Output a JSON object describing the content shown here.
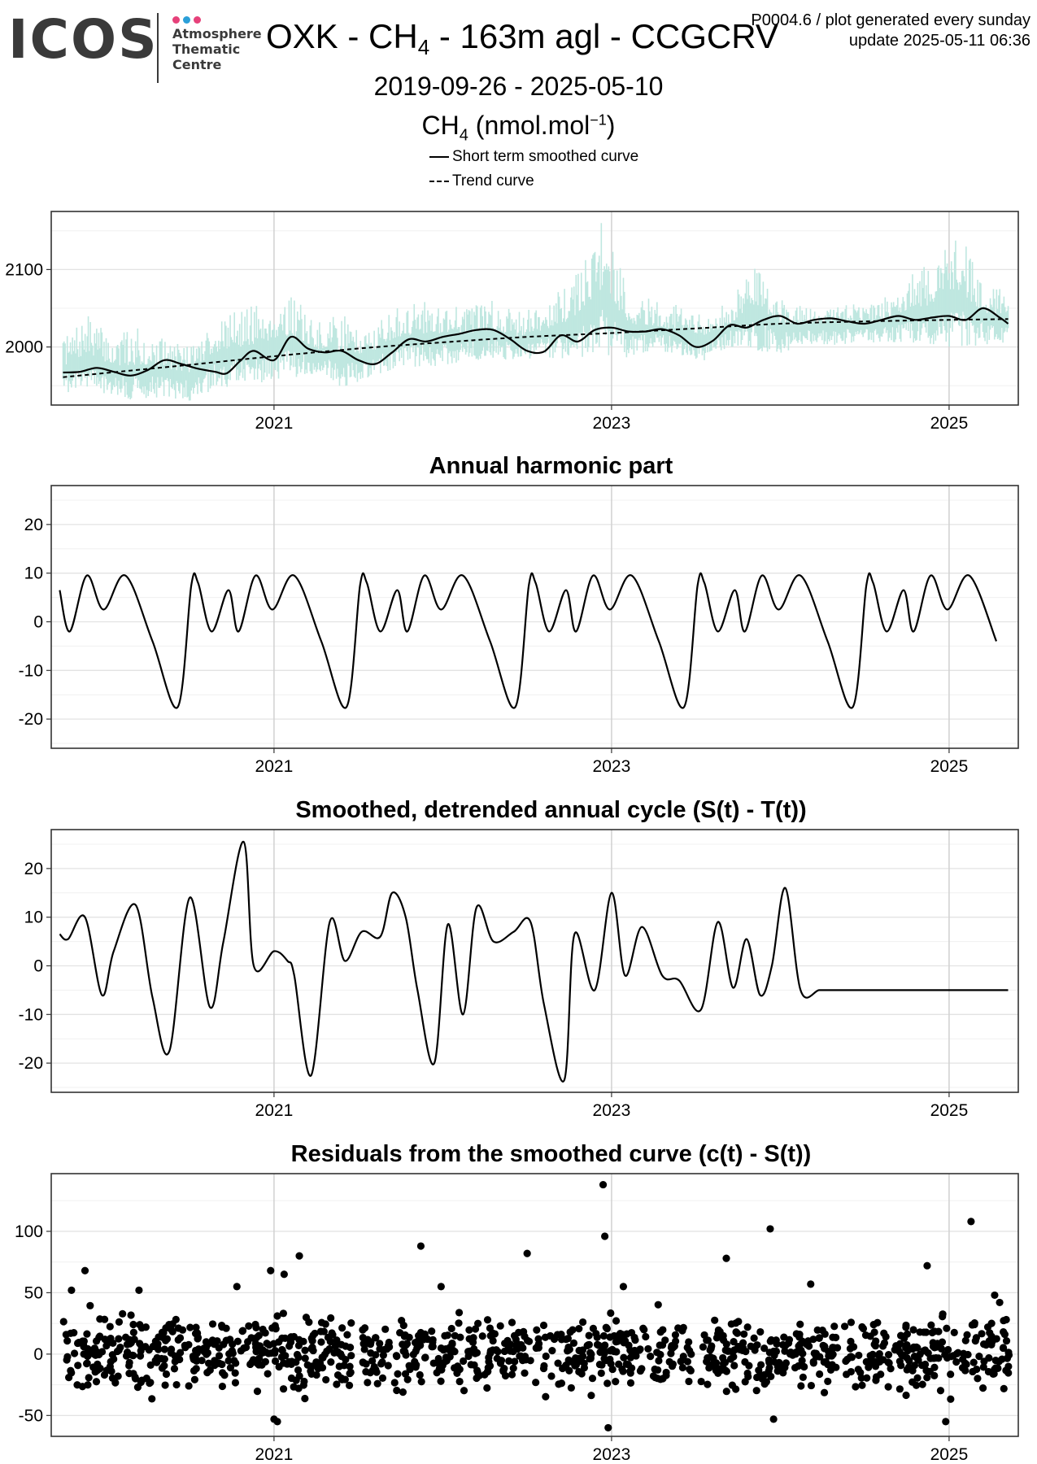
{
  "header": {
    "logo_word": "ICOS",
    "logo_lines": [
      "Atmosphere",
      "Thematic",
      "Centre"
    ],
    "logo_colors": [
      "#e6417a",
      "#2a9fd8",
      "#e6417a"
    ],
    "title_pre": "OXK - CH",
    "title_sub": "4",
    "title_post": " - 163m agl - CCGCRV",
    "plot_id": "P0004.6 / plot generated every sunday",
    "update": "update  2025-05-11 06:36",
    "date_range": "2019-09-26 - 2025-05-10",
    "unit_pre": "CH",
    "unit_sub": "4",
    "unit_mid": " (nmol.mol",
    "unit_sup": "−1",
    "unit_post": ")",
    "legend": [
      "Short term smoothed curve",
      "Trend curve"
    ]
  },
  "chart_data": [
    {
      "type": "line",
      "title": "",
      "x_tick_labels": [
        "2021",
        "2023",
        "2025"
      ],
      "x_ticks": [
        2021.0,
        2023.0,
        2025.0
      ],
      "xlim": [
        2019.68,
        2025.41
      ],
      "ylim": [
        1925,
        2175
      ],
      "y_ticks": [
        2000,
        2100
      ],
      "y_minor": [
        1950,
        2050,
        2150
      ],
      "grid": true,
      "colors": {
        "raw": "#bfe7e0",
        "smooth": "#000000",
        "trend": "#000000"
      },
      "series": [
        {
          "name": "",
          "style": "raw",
          "x": [
            2019.75,
            2019.9,
            2020.05,
            2020.2,
            2020.35,
            2020.5,
            2020.65,
            2020.8,
            2020.95,
            2021.1,
            2021.25,
            2021.4,
            2021.55,
            2021.7,
            2021.85,
            2022.0,
            2022.15,
            2022.3,
            2022.45,
            2022.6,
            2022.75,
            2022.95,
            2023.1,
            2023.25,
            2023.4,
            2023.55,
            2023.7,
            2023.85,
            2024.0,
            2024.15,
            2024.3,
            2024.45,
            2024.6,
            2024.75,
            2024.9,
            2025.05,
            2025.2,
            2025.35
          ],
          "low": [
            1940,
            1945,
            1935,
            1930,
            1935,
            1930,
            1945,
            1950,
            1955,
            1960,
            1965,
            1945,
            1960,
            1970,
            1975,
            1975,
            1980,
            1985,
            1980,
            1985,
            1985,
            1990,
            1985,
            1995,
            1990,
            1980,
            2000,
            1995,
            1990,
            2005,
            2000,
            2005,
            2005,
            2005,
            2000,
            2000,
            2000,
            2005
          ],
          "high": [
            2010,
            2040,
            2015,
            2025,
            2010,
            2005,
            2040,
            2050,
            2060,
            2070,
            2030,
            2045,
            2020,
            2050,
            2060,
            2060,
            2055,
            2060,
            2045,
            2060,
            2080,
            2165,
            2075,
            2060,
            2055,
            2040,
            2060,
            2110,
            2070,
            2055,
            2060,
            2060,
            2060,
            2090,
            2110,
            2150,
            2090,
            2070
          ]
        },
        {
          "name": "Short term smoothed curve",
          "style": "smooth",
          "x": [
            2019.75,
            2019.85,
            2019.95,
            2020.05,
            2020.15,
            2020.25,
            2020.35,
            2020.45,
            2020.55,
            2020.65,
            2020.72,
            2020.8,
            2020.88,
            2021.0,
            2021.1,
            2021.2,
            2021.3,
            2021.4,
            2021.5,
            2021.6,
            2021.7,
            2021.8,
            2021.9,
            2022.0,
            2022.1,
            2022.2,
            2022.3,
            2022.4,
            2022.5,
            2022.6,
            2022.7,
            2022.8,
            2022.9,
            2023.0,
            2023.1,
            2023.2,
            2023.3,
            2023.4,
            2023.5,
            2023.6,
            2023.7,
            2023.8,
            2023.9,
            2024.0,
            2024.1,
            2024.2,
            2024.3,
            2024.4,
            2024.5,
            2024.6,
            2024.7,
            2024.8,
            2024.9,
            2025.0,
            2025.1,
            2025.2,
            2025.3,
            2025.35
          ],
          "y": [
            1967,
            1968,
            1973,
            1968,
            1963,
            1970,
            1983,
            1978,
            1972,
            1968,
            1966,
            1982,
            1995,
            1983,
            2013,
            1998,
            1993,
            1995,
            1983,
            1978,
            1993,
            2010,
            2007,
            2013,
            2017,
            2022,
            2022,
            2010,
            1995,
            1994,
            2015,
            2007,
            2022,
            2025,
            2020,
            2020,
            2023,
            2015,
            2000,
            2008,
            2028,
            2025,
            2035,
            2040,
            2030,
            2035,
            2037,
            2033,
            2030,
            2035,
            2040,
            2035,
            2038,
            2040,
            2035,
            2050,
            2038,
            2030
          ]
        },
        {
          "name": "Trend curve",
          "style": "trend",
          "x": [
            2019.75,
            2020.5,
            2021.0,
            2021.5,
            2022.0,
            2022.5,
            2023.0,
            2023.5,
            2024.0,
            2024.5,
            2025.0,
            2025.35
          ],
          "y": [
            1961,
            1977,
            1988,
            1998,
            2006,
            2013,
            2018,
            2024,
            2030,
            2033,
            2035,
            2036
          ]
        }
      ]
    },
    {
      "type": "line",
      "title": "Annual harmonic part",
      "x_tick_labels": [
        "2021",
        "2023",
        "2025"
      ],
      "x_ticks": [
        2021.0,
        2023.0,
        2025.0
      ],
      "xlim": [
        2019.68,
        2025.41
      ],
      "ylim": [
        -26,
        28
      ],
      "y_ticks": [
        -20,
        -10,
        0,
        10,
        20
      ],
      "y_minor": [
        -25,
        -15,
        -5,
        5,
        15,
        25
      ],
      "grid": true,
      "harmonic_cycle": {
        "start": 2019.73,
        "end": 2025.35,
        "phase": [
          0.0,
          0.06,
          0.16,
          0.26,
          0.39,
          0.55,
          0.7,
          0.78,
          0.82,
          0.9,
          1.0
        ],
        "value": [
          6.5,
          -2.0,
          9.5,
          2.5,
          9.5,
          -4.0,
          -17.5,
          7.5,
          8.0,
          -2.0,
          6.5
        ]
      },
      "series": [
        {
          "name": "",
          "style": "smooth",
          "x": [],
          "y": []
        }
      ]
    },
    {
      "type": "line",
      "title": "Smoothed, detrended annual cycle (S(t) - T(t))",
      "x_tick_labels": [
        "2021",
        "2023",
        "2025"
      ],
      "x_ticks": [
        2021.0,
        2023.0,
        2025.0
      ],
      "xlim": [
        2019.68,
        2025.41
      ],
      "ylim": [
        -26,
        28
      ],
      "y_ticks": [
        -20,
        -10,
        0,
        10,
        20
      ],
      "y_minor": [
        -25,
        -15,
        -5,
        5,
        15,
        25
      ],
      "grid": true,
      "series": [
        {
          "name": "",
          "style": "smooth",
          "x": [
            2019.73,
            2019.78,
            2019.88,
            2019.98,
            2020.05,
            2020.18,
            2020.28,
            2020.38,
            2020.5,
            2020.62,
            2020.7,
            2020.82,
            2020.88,
            2021.0,
            2021.08,
            2021.12,
            2021.22,
            2021.33,
            2021.42,
            2021.52,
            2021.63,
            2021.7,
            2021.78,
            2021.85,
            2021.95,
            2022.03,
            2022.12,
            2022.2,
            2022.3,
            2022.42,
            2022.52,
            2022.6,
            2022.72,
            2022.78,
            2022.9,
            2023.0,
            2023.08,
            2023.18,
            2023.3,
            2023.4,
            2023.53,
            2023.63,
            2023.72,
            2023.8,
            2023.88,
            2023.95,
            2024.03,
            2024.12,
            2024.23,
            2024.3,
            2024.42,
            2024.5,
            2024.6,
            2024.68,
            2024.78,
            2024.85,
            2024.92,
            2024.98,
            2025.05,
            2025.12,
            2025.22,
            2025.35
          ],
          "y": [
            6.5,
            5.5,
            10,
            -6,
            3,
            12.5,
            -6.5,
            -17.5,
            14,
            -8.5,
            5,
            25.5,
            0,
            3,
            1,
            -2,
            -22.5,
            9,
            1,
            7,
            6,
            15,
            10,
            -5,
            -20,
            8.5,
            -10,
            12,
            5,
            7,
            9,
            -8,
            -23.5,
            6.5,
            -5,
            15,
            -2,
            8,
            -2,
            -3,
            -9,
            9,
            -4.5,
            5.5,
            -6,
            0,
            16,
            -5,
            -5,
            -5,
            -5,
            -5,
            -5,
            -5,
            -5,
            -5,
            -5,
            -5,
            -5,
            -5,
            -5,
            -5
          ]
        }
      ]
    },
    {
      "type": "scatter",
      "title": "Residuals from the smoothed curve (c(t) - S(t))",
      "x_tick_labels": [
        "2021",
        "2023",
        "2025"
      ],
      "x_ticks": [
        2021.0,
        2023.0,
        2025.0
      ],
      "xlim": [
        2019.68,
        2025.41
      ],
      "ylim": [
        -67,
        147
      ],
      "y_ticks": [
        -50,
        0,
        50,
        100
      ],
      "y_minor": [
        -25,
        25,
        75,
        125
      ],
      "grid": true,
      "residual_cloud": {
        "x_start": 2019.73,
        "x_end": 2025.36,
        "n": 1150,
        "core_low": -30,
        "core_high": 30,
        "gaps": [
          [
            2021.46,
            2021.52
          ],
          [
            2023.48,
            2023.53
          ],
          [
            2024.34,
            2024.38
          ]
        ]
      },
      "highlighted_points": {
        "x": [
          2019.8,
          2019.88,
          2020.2,
          2020.78,
          2020.98,
          2021.06,
          2021.15,
          2021.87,
          2021.99,
          2022.5,
          2022.95,
          2022.96,
          2023.07,
          2023.68,
          2023.94,
          2024.18,
          2024.87,
          2025.13,
          2025.27,
          2021.0,
          2021.02,
          2022.98,
          2023.96,
          2024.98
        ],
        "y": [
          52,
          68,
          52,
          55,
          68,
          65,
          80,
          88,
          55,
          82,
          138,
          96,
          55,
          78,
          102,
          57,
          72,
          108,
          48,
          -53,
          -55,
          -60,
          -53,
          -55
        ]
      },
      "series": [
        {
          "name": "",
          "style": "points",
          "x": [],
          "y": []
        }
      ]
    }
  ]
}
